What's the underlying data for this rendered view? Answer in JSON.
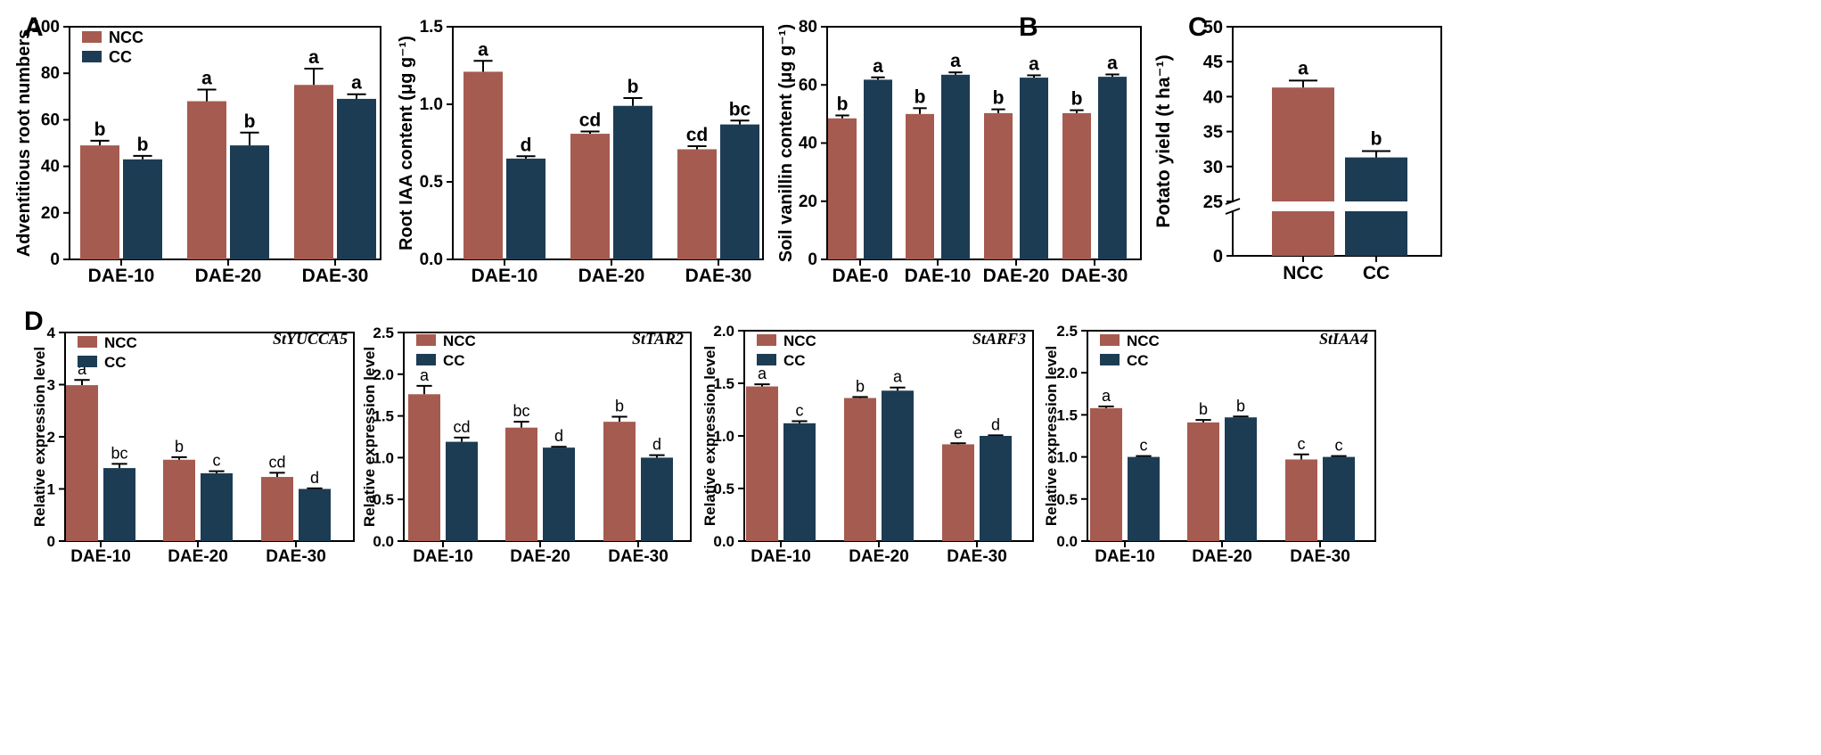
{
  "panel_letters": [
    "A",
    "B",
    "C",
    "D"
  ],
  "colors": {
    "NCC": "#a65b50",
    "CC": "#1c3c54",
    "axis": "#000000"
  },
  "chart_data": [
    {
      "id": "A1",
      "type": "bar",
      "panel": "A",
      "categories": [
        "DAE-10",
        "DAE-20",
        "DAE-30"
      ],
      "series": [
        {
          "name": "NCC",
          "values": [
            49,
            68,
            75
          ],
          "errors": [
            2,
            5,
            7
          ],
          "letters": [
            "b",
            "a",
            "a"
          ]
        },
        {
          "name": "CC",
          "values": [
            43,
            49,
            69
          ],
          "errors": [
            1.5,
            5.5,
            2
          ],
          "letters": [
            "b",
            "b",
            "a"
          ]
        }
      ],
      "ylabel": "Adventitious root numbers",
      "ylim": [
        0,
        100
      ],
      "yticks": [
        "0",
        "20",
        "40",
        "60",
        "80",
        "100"
      ],
      "legend": "top-left"
    },
    {
      "id": "A2",
      "type": "bar",
      "panel": "A",
      "categories": [
        "DAE-10",
        "DAE-20",
        "DAE-30"
      ],
      "series": [
        {
          "name": "NCC",
          "values": [
            1.21,
            0.81,
            0.71
          ],
          "errors": [
            0.07,
            0.015,
            0.02
          ],
          "letters": [
            "a",
            "cd",
            "cd"
          ]
        },
        {
          "name": "CC",
          "values": [
            0.65,
            0.99,
            0.87
          ],
          "errors": [
            0.015,
            0.05,
            0.025
          ],
          "letters": [
            "d",
            "b",
            "bc"
          ]
        }
      ],
      "ylabel": "Root IAA content (μg g⁻¹)",
      "ylim": [
        0,
        1.5
      ],
      "yticks": [
        "0.0",
        "0.5",
        "1.0",
        "1.5"
      ],
      "legend": "none"
    },
    {
      "id": "B",
      "type": "bar",
      "panel": "B",
      "categories": [
        "DAE-0",
        "DAE-10",
        "DAE-20",
        "DAE-30"
      ],
      "series": [
        {
          "name": "NCC",
          "values": [
            48.5,
            50,
            50.3,
            50.3
          ],
          "errors": [
            1,
            2,
            1.3,
            1
          ],
          "letters": [
            "b",
            "b",
            "b",
            "b"
          ]
        },
        {
          "name": "CC",
          "values": [
            61.8,
            63.5,
            62.5,
            62.8
          ],
          "errors": [
            0.8,
            0.8,
            0.8,
            0.8
          ],
          "letters": [
            "a",
            "a",
            "a",
            "a"
          ]
        }
      ],
      "ylabel": "Soil vanillin content (μg g⁻¹)",
      "ylim": [
        0,
        80
      ],
      "yticks": [
        "0",
        "20",
        "40",
        "60",
        "80"
      ],
      "legend": "none"
    },
    {
      "id": "C",
      "type": "bar",
      "panel": "C",
      "categories": [
        "NCC",
        "CC"
      ],
      "series": [
        {
          "name": "Potato yield",
          "values": [
            41.3,
            31.3
          ],
          "errors": [
            1,
            0.9
          ],
          "letters": [
            "a",
            "b"
          ]
        }
      ],
      "ylabel": "Potato yield (t ha⁻¹)",
      "ylim": [
        25,
        50
      ],
      "axis_break": true,
      "yticks": [
        "0",
        "25",
        "30",
        "35",
        "40",
        "45",
        "50"
      ],
      "legend": "none"
    },
    {
      "id": "D1",
      "type": "bar",
      "panel": "D",
      "gene": "StYUCCA5",
      "categories": [
        "DAE-10",
        "DAE-20",
        "DAE-30"
      ],
      "series": [
        {
          "name": "NCC",
          "values": [
            2.99,
            1.56,
            1.23
          ],
          "errors": [
            0.1,
            0.05,
            0.08
          ],
          "letters": [
            "a",
            "b",
            "cd"
          ]
        },
        {
          "name": "CC",
          "values": [
            1.4,
            1.3,
            1.0
          ],
          "errors": [
            0.08,
            0.04,
            0.01
          ],
          "letters": [
            "bc",
            "c",
            "d"
          ]
        }
      ],
      "ylabel": "Relative expression level",
      "ylim": [
        0,
        4
      ],
      "yticks": [
        "0",
        "1",
        "2",
        "3",
        "4"
      ],
      "legend": "top-left"
    },
    {
      "id": "D2",
      "type": "bar",
      "panel": "D",
      "gene": "StTAR2",
      "categories": [
        "DAE-10",
        "DAE-20",
        "DAE-30"
      ],
      "series": [
        {
          "name": "NCC",
          "values": [
            1.76,
            1.36,
            1.43
          ],
          "errors": [
            0.1,
            0.07,
            0.06
          ],
          "letters": [
            "a",
            "bc",
            "b"
          ]
        },
        {
          "name": "CC",
          "values": [
            1.19,
            1.12,
            1.0
          ],
          "errors": [
            0.05,
            0.01,
            0.03
          ],
          "letters": [
            "cd",
            "d",
            "d"
          ]
        }
      ],
      "ylabel": "Relative expression level",
      "ylim": [
        0,
        2.5
      ],
      "yticks": [
        "0.0",
        "0.5",
        "1.0",
        "1.5",
        "2.0",
        "2.5"
      ],
      "legend": "top-left"
    },
    {
      "id": "D3",
      "type": "bar",
      "panel": "D",
      "gene": "StARF3",
      "categories": [
        "DAE-10",
        "DAE-20",
        "DAE-30"
      ],
      "series": [
        {
          "name": "NCC",
          "values": [
            1.47,
            1.36,
            0.92
          ],
          "errors": [
            0.02,
            0.01,
            0.01
          ],
          "letters": [
            "a",
            "b",
            "e"
          ]
        },
        {
          "name": "CC",
          "values": [
            1.12,
            1.43,
            1.0
          ],
          "errors": [
            0.02,
            0.03,
            0.005
          ],
          "letters": [
            "c",
            "a",
            "d"
          ]
        }
      ],
      "ylabel": "Relative expression level",
      "ylim": [
        0,
        2.0
      ],
      "yticks": [
        "0.0",
        "0.5",
        "1.0",
        "1.5",
        "2.0"
      ],
      "legend": "top-left"
    },
    {
      "id": "D4",
      "type": "bar",
      "panel": "D",
      "gene": "StIAA4",
      "categories": [
        "DAE-10",
        "DAE-20",
        "DAE-30"
      ],
      "series": [
        {
          "name": "NCC",
          "values": [
            1.58,
            1.41,
            0.97
          ],
          "errors": [
            0.02,
            0.03,
            0.06
          ],
          "letters": [
            "a",
            "b",
            "c"
          ]
        },
        {
          "name": "CC",
          "values": [
            1.0,
            1.47,
            1.0
          ],
          "errors": [
            0.01,
            0.01,
            0.01
          ],
          "letters": [
            "c",
            "b",
            "c"
          ]
        }
      ],
      "ylabel": "Relative expression level",
      "ylim": [
        0,
        2.5
      ],
      "yticks": [
        "0.0",
        "0.5",
        "1.0",
        "1.5",
        "2.0",
        "2.5"
      ],
      "legend": "top-left"
    }
  ]
}
